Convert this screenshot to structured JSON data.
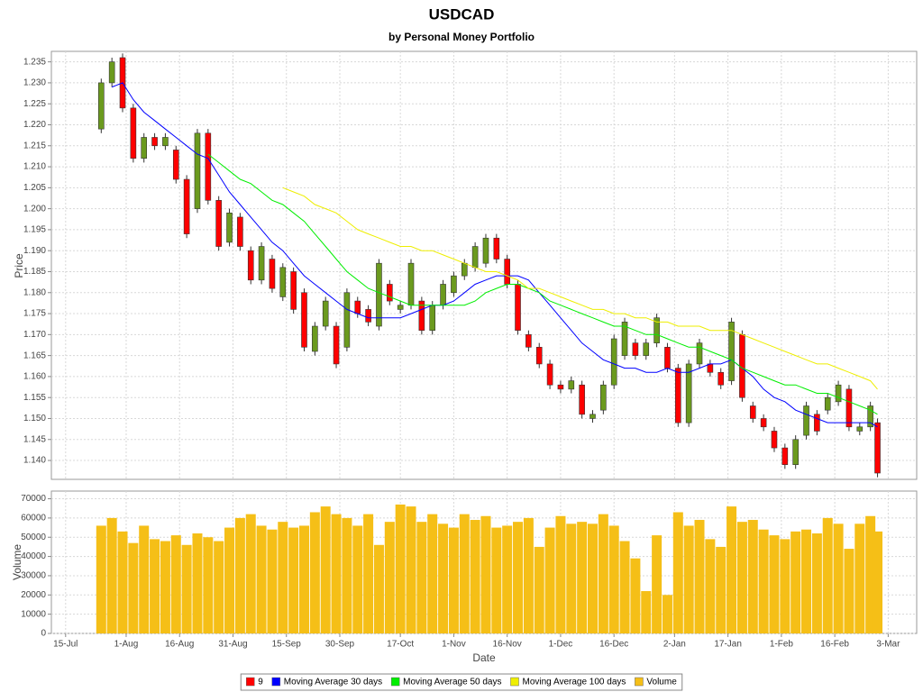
{
  "chart_data": [
    {
      "type": "candlestick",
      "title": "USDCAD",
      "subtitle": "by Personal Money Portfolio",
      "y_label": "Price",
      "ylim": [
        1.1355,
        1.2375
      ],
      "yticks": [
        {
          "value": 1.14,
          "label": "1.140"
        },
        1.145,
        {
          "value": 1.15,
          "label": "1.150"
        },
        1.155,
        {
          "value": 1.16,
          "label": "1.160"
        },
        1.165,
        {
          "value": 1.17,
          "label": "1.170"
        },
        1.175,
        {
          "value": 1.18,
          "label": "1.180"
        },
        1.185,
        {
          "value": 1.19,
          "label": "1.190"
        },
        1.195,
        {
          "value": 1.2,
          "label": "1.200"
        },
        1.205,
        {
          "value": 1.21,
          "label": "1.210"
        },
        1.215,
        {
          "value": 1.22,
          "label": "1.220"
        },
        1.225,
        {
          "value": 1.23,
          "label": "1.230"
        },
        1.235
      ],
      "grid": true,
      "x": [
        "25-Jul",
        "28-Jul",
        "31-Jul",
        "3-Aug",
        "6-Aug",
        "9-Aug",
        "12-Aug",
        "15-Aug",
        "18-Aug",
        "21-Aug",
        "24-Aug",
        "27-Aug",
        "30-Aug",
        "2-Sep",
        "5-Sep",
        "8-Sep",
        "11-Sep",
        "14-Sep",
        "17-Sep",
        "20-Sep",
        "23-Sep",
        "26-Sep",
        "29-Sep",
        "2-Oct",
        "5-Oct",
        "8-Oct",
        "11-Oct",
        "14-Oct",
        "17-Oct",
        "20-Oct",
        "23-Oct",
        "26-Oct",
        "29-Oct",
        "1-Nov",
        "4-Nov",
        "7-Nov",
        "10-Nov",
        "13-Nov",
        "16-Nov",
        "19-Nov",
        "22-Nov",
        "25-Nov",
        "28-Nov",
        "1-Dec",
        "4-Dec",
        "7-Dec",
        "10-Dec",
        "13-Dec",
        "16-Dec",
        "19-Dec",
        "22-Dec",
        "25-Dec",
        "28-Dec",
        "31-Dec",
        "3-Jan",
        "6-Jan",
        "9-Jan",
        "12-Jan",
        "15-Jan",
        "18-Jan",
        "21-Jan",
        "24-Jan",
        "27-Jan",
        "30-Jan",
        "2-Feb",
        "5-Feb",
        "8-Feb",
        "11-Feb",
        "14-Feb",
        "17-Feb",
        "20-Feb",
        "23-Feb",
        "26-Feb",
        "28-Feb"
      ],
      "candles": {
        "name": "9",
        "color": "#ff0000",
        "up_color": "#6b9a1e",
        "open": [
          1.219,
          1.23,
          1.236,
          1.224,
          1.212,
          1.217,
          1.215,
          1.214,
          1.207,
          1.2,
          1.218,
          1.202,
          1.192,
          1.198,
          1.19,
          1.183,
          1.188,
          1.179,
          1.185,
          1.18,
          1.166,
          1.172,
          1.172,
          1.167,
          1.178,
          1.176,
          1.172,
          1.182,
          1.176,
          1.177,
          1.178,
          1.171,
          1.177,
          1.18,
          1.184,
          1.186,
          1.187,
          1.193,
          1.188,
          1.182,
          1.17,
          1.167,
          1.163,
          1.158,
          1.157,
          1.158,
          1.15,
          1.152,
          1.158,
          1.165,
          1.168,
          1.165,
          1.168,
          1.167,
          1.162,
          1.149,
          1.163,
          1.163,
          1.161,
          1.159,
          1.17,
          1.153,
          1.15,
          1.147,
          1.143,
          1.139,
          1.146,
          1.151,
          1.152,
          1.154,
          1.157,
          1.147,
          1.148,
          1.149
        ],
        "high": [
          1.231,
          1.236,
          1.237,
          1.225,
          1.218,
          1.218,
          1.218,
          1.215,
          1.208,
          1.219,
          1.219,
          1.203,
          1.2,
          1.199,
          1.191,
          1.192,
          1.189,
          1.187,
          1.186,
          1.181,
          1.173,
          1.179,
          1.173,
          1.181,
          1.179,
          1.177,
          1.188,
          1.183,
          1.178,
          1.188,
          1.179,
          1.178,
          1.183,
          1.185,
          1.188,
          1.192,
          1.194,
          1.194,
          1.189,
          1.183,
          1.171,
          1.168,
          1.164,
          1.159,
          1.16,
          1.159,
          1.152,
          1.159,
          1.17,
          1.174,
          1.169,
          1.169,
          1.175,
          1.168,
          1.163,
          1.164,
          1.169,
          1.164,
          1.162,
          1.174,
          1.171,
          1.154,
          1.151,
          1.148,
          1.144,
          1.146,
          1.154,
          1.152,
          1.156,
          1.159,
          1.158,
          1.149,
          1.154,
          1.15
        ],
        "low": [
          1.218,
          1.229,
          1.223,
          1.211,
          1.211,
          1.214,
          1.214,
          1.206,
          1.193,
          1.199,
          1.201,
          1.19,
          1.191,
          1.19,
          1.182,
          1.182,
          1.18,
          1.178,
          1.175,
          1.166,
          1.165,
          1.171,
          1.162,
          1.166,
          1.174,
          1.172,
          1.171,
          1.177,
          1.175,
          1.176,
          1.17,
          1.17,
          1.176,
          1.179,
          1.183,
          1.185,
          1.186,
          1.187,
          1.181,
          1.17,
          1.166,
          1.162,
          1.157,
          1.156,
          1.156,
          1.15,
          1.149,
          1.151,
          1.157,
          1.164,
          1.164,
          1.164,
          1.167,
          1.161,
          1.148,
          1.148,
          1.162,
          1.16,
          1.157,
          1.158,
          1.154,
          1.149,
          1.147,
          1.142,
          1.138,
          1.138,
          1.145,
          1.146,
          1.151,
          1.153,
          1.147,
          1.146,
          1.147,
          1.136
        ],
        "close": [
          1.23,
          1.235,
          1.224,
          1.212,
          1.217,
          1.215,
          1.217,
          1.207,
          1.194,
          1.218,
          1.202,
          1.191,
          1.199,
          1.191,
          1.183,
          1.191,
          1.181,
          1.186,
          1.176,
          1.167,
          1.172,
          1.178,
          1.163,
          1.18,
          1.175,
          1.173,
          1.187,
          1.178,
          1.177,
          1.187,
          1.171,
          1.177,
          1.182,
          1.184,
          1.187,
          1.191,
          1.193,
          1.188,
          1.182,
          1.171,
          1.167,
          1.163,
          1.158,
          1.157,
          1.159,
          1.151,
          1.151,
          1.158,
          1.169,
          1.173,
          1.165,
          1.168,
          1.174,
          1.162,
          1.149,
          1.163,
          1.168,
          1.161,
          1.158,
          1.173,
          1.155,
          1.15,
          1.148,
          1.143,
          1.139,
          1.145,
          1.153,
          1.147,
          1.155,
          1.158,
          1.148,
          1.148,
          1.153,
          1.137
        ]
      },
      "series": [
        {
          "name": "Moving Average 30 days",
          "color": "#0000ff",
          "values": [
            null,
            1.229,
            1.23,
            1.226,
            1.223,
            1.221,
            1.219,
            1.217,
            1.215,
            1.213,
            1.212,
            1.208,
            1.204,
            1.201,
            1.198,
            1.195,
            1.192,
            1.19,
            1.187,
            1.184,
            1.182,
            1.18,
            1.178,
            1.176,
            1.175,
            1.174,
            1.174,
            1.174,
            1.174,
            1.175,
            1.176,
            1.177,
            1.177,
            1.178,
            1.18,
            1.182,
            1.183,
            1.184,
            1.184,
            1.184,
            1.183,
            1.18,
            1.177,
            1.174,
            1.171,
            1.168,
            1.166,
            1.164,
            1.163,
            1.162,
            1.162,
            1.161,
            1.161,
            1.162,
            1.161,
            1.161,
            1.162,
            1.163,
            1.163,
            1.164,
            1.162,
            1.16,
            1.157,
            1.155,
            1.154,
            1.152,
            1.151,
            1.15,
            1.149,
            1.149,
            1.149,
            1.149,
            1.149,
            1.148
          ]
        },
        {
          "name": "Moving Average 50 days",
          "color": "#00ee00",
          "values": [
            null,
            null,
            null,
            null,
            null,
            null,
            null,
            null,
            null,
            null,
            1.213,
            1.211,
            1.209,
            1.207,
            1.206,
            1.204,
            1.202,
            1.201,
            1.199,
            1.197,
            1.194,
            1.191,
            1.188,
            1.185,
            1.183,
            1.181,
            1.18,
            1.179,
            1.178,
            1.177,
            1.177,
            1.177,
            1.177,
            1.177,
            1.177,
            1.178,
            1.18,
            1.181,
            1.182,
            1.182,
            1.181,
            1.18,
            1.178,
            1.177,
            1.176,
            1.175,
            1.174,
            1.173,
            1.172,
            1.172,
            1.171,
            1.17,
            1.17,
            1.169,
            1.168,
            1.167,
            1.167,
            1.166,
            1.165,
            1.164,
            1.162,
            1.161,
            1.16,
            1.159,
            1.158,
            1.158,
            1.157,
            1.156,
            1.156,
            1.155,
            1.154,
            1.153,
            1.152,
            1.151
          ]
        },
        {
          "name": "Moving Average 100 days",
          "color": "#eeee00",
          "values": [
            null,
            null,
            null,
            null,
            null,
            null,
            null,
            null,
            null,
            null,
            null,
            null,
            null,
            null,
            null,
            null,
            null,
            1.205,
            1.204,
            1.203,
            1.201,
            1.2,
            1.199,
            1.197,
            1.195,
            1.194,
            1.193,
            1.192,
            1.191,
            1.191,
            1.19,
            1.19,
            1.189,
            1.188,
            1.187,
            1.186,
            1.185,
            1.185,
            1.184,
            1.183,
            1.181,
            1.181,
            1.18,
            1.179,
            1.178,
            1.177,
            1.176,
            1.176,
            1.175,
            1.175,
            1.174,
            1.174,
            1.173,
            1.173,
            1.172,
            1.172,
            1.172,
            1.171,
            1.171,
            1.171,
            1.17,
            1.169,
            1.168,
            1.167,
            1.166,
            1.165,
            1.164,
            1.163,
            1.163,
            1.162,
            1.161,
            1.16,
            1.159,
            1.157
          ]
        }
      ]
    },
    {
      "type": "bar",
      "y_label": "Volume",
      "x_label": "Date",
      "xlim": [
        "11-Jul",
        "11-Mar"
      ],
      "xticks": [
        "15-Jul",
        "1-Aug",
        "16-Aug",
        "31-Aug",
        "15-Sep",
        "30-Sep",
        "17-Oct",
        "1-Nov",
        "16-Nov",
        "1-Dec",
        "16-Dec",
        "2-Jan",
        "17-Jan",
        "1-Feb",
        "16-Feb",
        "3-Mar"
      ],
      "ylim": [
        0,
        74000
      ],
      "yticks": [
        0,
        10000,
        20000,
        30000,
        40000,
        50000,
        60000,
        70000
      ],
      "grid": true,
      "series": [
        {
          "name": "Volume",
          "color": "#f5bf17",
          "values": [
            56000,
            60000,
            53000,
            47000,
            56000,
            49000,
            48000,
            51000,
            46000,
            52000,
            50000,
            48000,
            55000,
            60000,
            62000,
            56000,
            54000,
            58000,
            55000,
            56000,
            63000,
            66000,
            62000,
            60000,
            56000,
            62000,
            46000,
            58000,
            67000,
            66000,
            58000,
            62000,
            57000,
            55000,
            62000,
            59000,
            61000,
            55000,
            56000,
            58000,
            60000,
            45000,
            55000,
            61000,
            57000,
            58000,
            57000,
            62000,
            56000,
            48000,
            39000,
            22000,
            51000,
            20000,
            63000,
            56000,
            59000,
            49000,
            45000,
            66000,
            58000,
            59000,
            54000,
            51000,
            49000,
            53000,
            54000,
            52000,
            60000,
            57000,
            44000,
            57000,
            61000,
            53000
          ]
        }
      ]
    }
  ]
}
